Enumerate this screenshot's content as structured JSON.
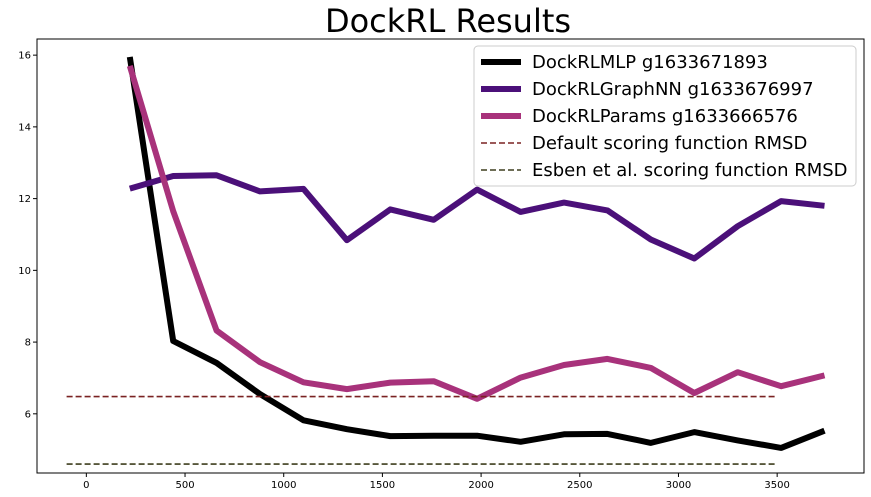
{
  "chart_data": {
    "type": "line",
    "title": "DockRL Results",
    "xlabel": "",
    "ylabel": "",
    "xlim": [
      -250,
      3940
    ],
    "ylim": [
      4.35,
      16.45
    ],
    "xticks": [
      0,
      500,
      1000,
      1500,
      2000,
      2500,
      3000,
      3500
    ],
    "yticks": [
      6,
      8,
      10,
      12,
      14,
      16
    ],
    "grid": false,
    "legend_position": "top-right",
    "x": [
      220,
      440,
      660,
      880,
      1100,
      1320,
      1540,
      1760,
      1980,
      2200,
      2420,
      2640,
      2860,
      3080,
      3300,
      3520,
      3740
    ],
    "series": [
      {
        "name": "DockRLMLP g1633671893",
        "color": "#000000",
        "style": "solid",
        "values": [
          15.95,
          8.03,
          7.42,
          6.55,
          5.82,
          5.57,
          5.38,
          5.39,
          5.39,
          5.22,
          5.43,
          5.44,
          5.19,
          5.49,
          5.26,
          5.05,
          5.53
        ]
      },
      {
        "name": "DockRLGraphNN g1633676997",
        "color": "#4b1079",
        "style": "solid",
        "values": [
          12.28,
          12.63,
          12.65,
          12.2,
          12.27,
          10.84,
          11.7,
          11.41,
          12.25,
          11.63,
          11.89,
          11.67,
          10.86,
          10.33,
          11.23,
          11.93,
          11.8
        ]
      },
      {
        "name": "DockRLParams g1633666576",
        "color": "#a8327b",
        "style": "solid",
        "values": [
          15.7,
          11.65,
          8.32,
          7.44,
          6.88,
          6.69,
          6.87,
          6.91,
          6.42,
          7.01,
          7.36,
          7.53,
          7.28,
          6.58,
          7.16,
          6.77,
          7.07
        ]
      },
      {
        "name": "Default scoring function RMSD",
        "color": "#7a2222",
        "style": "dashed",
        "x_range": [
          -100,
          3500
        ],
        "value": 6.48
      },
      {
        "name": "Esben et al. scoring function RMSD",
        "color": "#3e3e1e",
        "style": "dashed",
        "x_range": [
          -100,
          3500
        ],
        "value": 4.6
      }
    ]
  }
}
